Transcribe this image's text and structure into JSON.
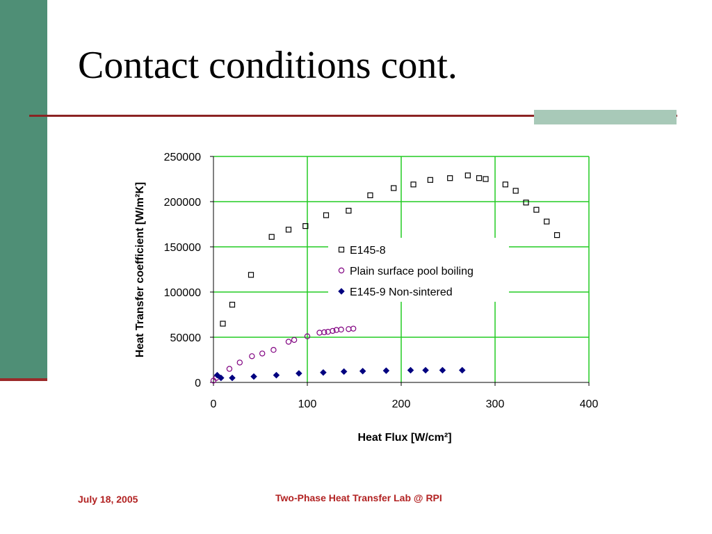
{
  "slide": {
    "title": "Contact conditions cont.",
    "footer_date": "July 18, 2005",
    "footer_center": "Two-Phase Heat Transfer Lab @ RPI"
  },
  "colors": {
    "side_bar": "#4f8f76",
    "rule": "#8b2323",
    "accent_block": "#a8c9b8",
    "footer_text": "#b22222",
    "grid": "#22cc22",
    "series_e145_8": "#000000",
    "series_plain": "#800080",
    "series_e145_9": "#000080"
  },
  "chart_data": {
    "type": "scatter",
    "xlabel": "Heat Flux [W/cm²]",
    "ylabel": "Heat Transfer coefficient [W/m²K]",
    "xlim": [
      0,
      400
    ],
    "ylim": [
      0,
      250000
    ],
    "x_ticks": [
      "0",
      "100",
      "200",
      "300",
      "400"
    ],
    "y_ticks": [
      "0",
      "50000",
      "100000",
      "150000",
      "200000",
      "250000"
    ],
    "grid": true,
    "legend_position": "center-right",
    "series": [
      {
        "name": "E145-8",
        "marker": "square-open",
        "x": [
          10,
          20,
          40,
          62,
          80,
          98,
          120,
          144,
          167,
          192,
          213,
          231,
          252,
          271,
          283,
          290,
          311,
          322,
          333,
          344,
          355,
          366
        ],
        "y": [
          65000,
          86000,
          119000,
          161000,
          169000,
          173000,
          185000,
          190000,
          207000,
          215000,
          219000,
          224000,
          226000,
          229000,
          226000,
          225000,
          219000,
          212000,
          199000,
          191000,
          178000,
          163000
        ]
      },
      {
        "name": "Plain surface pool boiling",
        "marker": "circle-open",
        "x": [
          0,
          3,
          17,
          28,
          41,
          52,
          64,
          80,
          86,
          100,
          113,
          118,
          122,
          127,
          131,
          136,
          144,
          149
        ],
        "y": [
          2000,
          5000,
          15000,
          22000,
          29000,
          32000,
          36000,
          45000,
          47000,
          51000,
          55000,
          55500,
          56000,
          57000,
          58000,
          58500,
          59000,
          59500
        ]
      },
      {
        "name": "E145-9 Non-sintered",
        "marker": "diamond-filled",
        "x": [
          4,
          8,
          20,
          43,
          67,
          91,
          117,
          139,
          159,
          184,
          210,
          226,
          244,
          265
        ],
        "y": [
          8000,
          5000,
          5000,
          6500,
          8000,
          10000,
          11000,
          12000,
          12500,
          13000,
          13500,
          13500,
          13500,
          13500
        ]
      }
    ]
  }
}
